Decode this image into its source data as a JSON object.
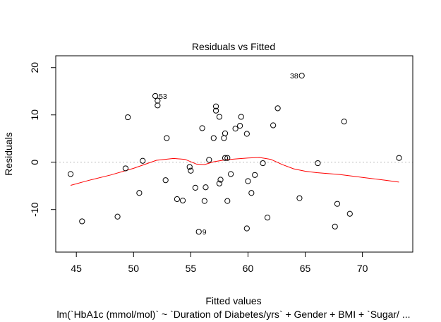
{
  "chart_data": {
    "type": "scatter",
    "title": "Residuals vs Fitted",
    "xlabel": "Fitted values",
    "ylabel": "Residuals",
    "subtitle": "lm(`HbA1c (mmol/mol)` ~ `Duration of Diabetes/yrs` + Gender + BMI + `Sugar/ ...",
    "xlim": [
      43.2,
      74.4
    ],
    "ylim": [
      -19,
      22.5
    ],
    "xticks": [
      45,
      50,
      55,
      60,
      65,
      70
    ],
    "yticks": [
      -10,
      0,
      10,
      20
    ],
    "reference_line": 0,
    "colors": {
      "smooth": "#ff0000",
      "points": "#000000",
      "reference": "#bebebe"
    },
    "points": [
      {
        "x": 44.5,
        "y": -2.5
      },
      {
        "x": 45.5,
        "y": -12.5
      },
      {
        "x": 48.6,
        "y": -11.5
      },
      {
        "x": 49.3,
        "y": -1.3
      },
      {
        "x": 49.5,
        "y": 9.5
      },
      {
        "x": 50.5,
        "y": -6.5
      },
      {
        "x": 50.8,
        "y": 0.3
      },
      {
        "x": 51.9,
        "y": 14.0
      },
      {
        "x": 52.1,
        "y": 13.0
      },
      {
        "x": 52.1,
        "y": 12.0
      },
      {
        "x": 52.8,
        "y": -3.8
      },
      {
        "x": 52.9,
        "y": 5.1
      },
      {
        "x": 53.8,
        "y": -7.8
      },
      {
        "x": 54.3,
        "y": -8.1
      },
      {
        "x": 54.9,
        "y": -1.0
      },
      {
        "x": 55.0,
        "y": -1.8
      },
      {
        "x": 55.4,
        "y": -5.4
      },
      {
        "x": 55.7,
        "y": -14.7
      },
      {
        "x": 56.0,
        "y": 7.2
      },
      {
        "x": 56.2,
        "y": -8.2
      },
      {
        "x": 56.3,
        "y": -5.3
      },
      {
        "x": 56.6,
        "y": 0.5
      },
      {
        "x": 57.0,
        "y": 5.1
      },
      {
        "x": 57.2,
        "y": 11.8
      },
      {
        "x": 57.2,
        "y": 10.9
      },
      {
        "x": 57.5,
        "y": 9.6
      },
      {
        "x": 57.5,
        "y": -4.5
      },
      {
        "x": 57.6,
        "y": -3.7
      },
      {
        "x": 57.9,
        "y": 5.1
      },
      {
        "x": 58.0,
        "y": 6.1
      },
      {
        "x": 58.0,
        "y": 0.9
      },
      {
        "x": 58.2,
        "y": 0.9
      },
      {
        "x": 58.2,
        "y": -8.2
      },
      {
        "x": 58.5,
        "y": -2.5
      },
      {
        "x": 58.9,
        "y": 7.1
      },
      {
        "x": 59.3,
        "y": 7.7
      },
      {
        "x": 59.4,
        "y": 9.6
      },
      {
        "x": 59.9,
        "y": -14.0
      },
      {
        "x": 59.9,
        "y": 6.0
      },
      {
        "x": 60.0,
        "y": -4.0
      },
      {
        "x": 60.3,
        "y": -6.5
      },
      {
        "x": 60.6,
        "y": -2.7
      },
      {
        "x": 61.3,
        "y": -0.2
      },
      {
        "x": 61.7,
        "y": -11.7
      },
      {
        "x": 62.2,
        "y": 7.8
      },
      {
        "x": 62.6,
        "y": 11.4
      },
      {
        "x": 64.5,
        "y": -7.6
      },
      {
        "x": 64.7,
        "y": 18.3
      },
      {
        "x": 66.1,
        "y": -0.2
      },
      {
        "x": 67.6,
        "y": -13.6
      },
      {
        "x": 67.8,
        "y": -8.8
      },
      {
        "x": 68.4,
        "y": 8.6
      },
      {
        "x": 68.9,
        "y": -10.9
      },
      {
        "x": 73.2,
        "y": 0.9
      }
    ],
    "point_labels": [
      {
        "text": "53",
        "x": 51.9,
        "y": 14.0,
        "side": "right"
      },
      {
        "text": "38",
        "x": 64.7,
        "y": 18.3,
        "side": "left"
      },
      {
        "text": "9",
        "x": 55.7,
        "y": -14.7,
        "side": "right"
      }
    ],
    "smooth_line": [
      {
        "x": 44.5,
        "y": -4.9
      },
      {
        "x": 46.0,
        "y": -3.9
      },
      {
        "x": 48.0,
        "y": -2.7
      },
      {
        "x": 50.0,
        "y": -1.3
      },
      {
        "x": 52.0,
        "y": 0.4
      },
      {
        "x": 53.5,
        "y": 0.8
      },
      {
        "x": 54.5,
        "y": 0.6
      },
      {
        "x": 55.5,
        "y": -0.4
      },
      {
        "x": 56.2,
        "y": -0.5
      },
      {
        "x": 57.0,
        "y": 0.1
      },
      {
        "x": 58.0,
        "y": 0.5
      },
      {
        "x": 59.0,
        "y": 0.7
      },
      {
        "x": 60.0,
        "y": 0.9
      },
      {
        "x": 61.0,
        "y": 1.0
      },
      {
        "x": 62.0,
        "y": 0.6
      },
      {
        "x": 63.0,
        "y": -0.5
      },
      {
        "x": 64.0,
        "y": -1.4
      },
      {
        "x": 65.0,
        "y": -1.9
      },
      {
        "x": 66.0,
        "y": -2.2
      },
      {
        "x": 68.0,
        "y": -2.6
      },
      {
        "x": 70.0,
        "y": -3.2
      },
      {
        "x": 72.0,
        "y": -3.8
      },
      {
        "x": 73.2,
        "y": -4.2
      }
    ]
  }
}
